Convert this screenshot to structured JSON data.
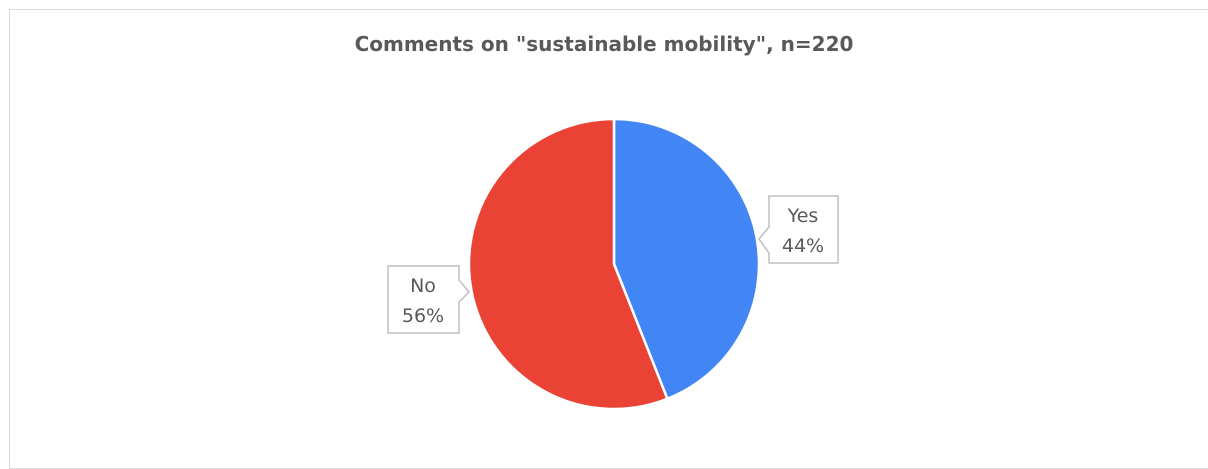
{
  "chart_data": {
    "type": "pie",
    "title": "Comments on \"sustainable mobility\", n=220",
    "categories": [
      "Yes",
      "No"
    ],
    "values": [
      44,
      56
    ],
    "value_unit": "%",
    "labels": [
      {
        "category": "Yes",
        "percent": "44%"
      },
      {
        "category": "No",
        "percent": "56%"
      }
    ],
    "colors": [
      "#4285f4",
      "#ea4335"
    ],
    "start_angle": "12 o'clock, clockwise",
    "legend": "none",
    "data_label_style": "callout"
  }
}
